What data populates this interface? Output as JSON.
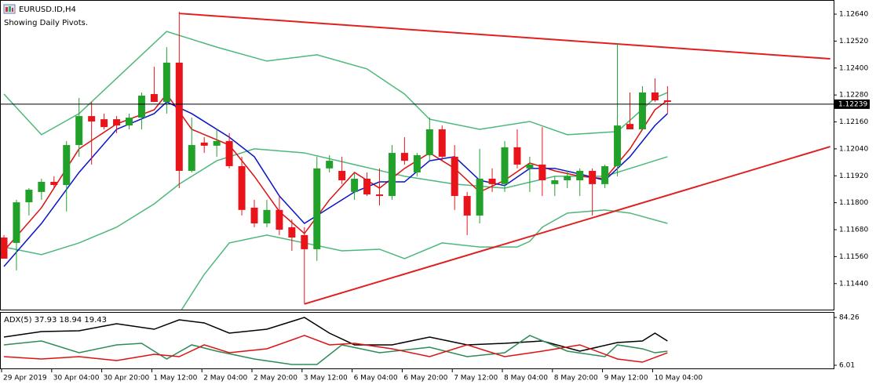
{
  "chart_data": {
    "type": "candlestick",
    "title": "EURUSD.ID,H4",
    "subtitle": "Showing Daily Pivots.",
    "up_color": "#22a12a",
    "down_color": "#e8141a",
    "open": [
      1.11645,
      1.11621,
      1.11802,
      1.11848,
      1.11893,
      1.11879,
      1.12057,
      1.12186,
      1.12172,
      1.12172,
      1.12144,
      1.12179,
      1.12284,
      1.12249,
      1.12424,
      1.11942,
      1.12068,
      1.12054,
      1.12075,
      1.11963,
      1.11778,
      1.11708,
      1.11768,
      1.11691,
      1.11656,
      1.11593,
      1.11953,
      1.11942,
      1.11848,
      1.11907,
      1.11837,
      1.1183,
      1.12022,
      1.11935,
      1.12012,
      1.12127,
      1.12005,
      1.1183,
      1.11743,
      1.11907,
      1.11883,
      1.12047,
      1.11953,
      1.1197,
      1.11883,
      1.119,
      1.119,
      1.11942,
      1.11883,
      1.11963,
      1.12151,
      1.12127,
      1.12291,
      1.12256
    ],
    "high": [
      1.11656,
      1.11813,
      1.11865,
      1.11907,
      1.11918,
      1.12075,
      1.12267,
      1.12249,
      1.12197,
      1.12186,
      1.12197,
      1.12291,
      1.12406,
      1.12493,
      1.1265,
      1.12179,
      1.12092,
      1.12127,
      1.1211,
      1.12005,
      1.11813,
      1.11813,
      1.1183,
      1.11726,
      1.11691,
      1.12005,
      1.12012,
      1.12005,
      1.11935,
      1.11935,
      1.11953,
      1.12057,
      1.12092,
      1.12022,
      1.12179,
      1.12144,
      1.12057,
      1.11848,
      1.1204,
      1.11953,
      1.12075,
      1.12127,
      1.12005,
      1.12137,
      1.11918,
      1.11942,
      1.11953,
      1.11953,
      1.1197,
      1.12511,
      1.12291,
      1.12319,
      1.12354,
      1.12319
    ],
    "low": [
      1.11551,
      1.11499,
      1.11743,
      1.11813,
      1.11865,
      1.11761,
      1.12005,
      1.1197,
      1.12127,
      1.1211,
      1.12127,
      1.12127,
      1.12249,
      1.12197,
      1.11865,
      1.11935,
      1.12022,
      1.12005,
      1.11953,
      1.11743,
      1.11691,
      1.11691,
      1.11656,
      1.11586,
      1.11349,
      1.11541,
      1.11935,
      1.11883,
      1.11813,
      1.1183,
      1.11788,
      1.11813,
      1.1197,
      1.11918,
      1.11987,
      1.11987,
      1.11768,
      1.11656,
      1.11708,
      1.11848,
      1.11848,
      1.11953,
      1.11848,
      1.1183,
      1.1183,
      1.11865,
      1.1183,
      1.11743,
      1.11865,
      1.11918,
      1.12127,
      1.12127,
      1.12249,
      1.12197
    ],
    "close": [
      1.11551,
      1.11802,
      1.11858,
      1.11893,
      1.11879,
      1.12057,
      1.12186,
      1.12162,
      1.12137,
      1.12144,
      1.12179,
      1.12277,
      1.12249,
      1.12424,
      1.11942,
      1.12057,
      1.12054,
      1.12075,
      1.11963,
      1.11768,
      1.11708,
      1.11768,
      1.1168,
      1.11645,
      1.11593,
      1.11953,
      1.11987,
      1.119,
      1.11907,
      1.11837,
      1.1183,
      1.12022,
      1.11987,
      1.12012,
      1.12127,
      1.12005,
      1.1183,
      1.11743,
      1.11907,
      1.11883,
      1.12047,
      1.1197,
      1.1197,
      1.119,
      1.119,
      1.11918,
      1.11942,
      1.11883,
      1.11963,
      1.12144,
      1.12127,
      1.12291,
      1.12256,
      1.12249
    ],
    "ylim": [
      1.11324,
      1.12703
    ],
    "yticks": [
      {
        "value": 1.1264,
        "label": "1.12640"
      },
      {
        "value": 1.1252,
        "label": "1.12520"
      },
      {
        "value": 1.124,
        "label": "1.12400"
      },
      {
        "value": 1.1228,
        "label": "1.12280"
      },
      {
        "value": 1.1216,
        "label": "1.12160"
      },
      {
        "value": 1.1204,
        "label": "1.12040"
      },
      {
        "value": 1.1192,
        "label": "1.11920"
      },
      {
        "value": 1.118,
        "label": "1.11800"
      },
      {
        "value": 1.1168,
        "label": "1.11680"
      },
      {
        "value": 1.1156,
        "label": "1.11560"
      },
      {
        "value": 1.1144,
        "label": "1.11440"
      }
    ],
    "current_price": {
      "value": 1.12239,
      "label": "1.12239"
    },
    "xticks": [
      {
        "value": 0,
        "label": "29 Apr 2019"
      },
      {
        "value": 4,
        "label": "30 Apr 04:00"
      },
      {
        "value": 8,
        "label": "30 Apr 20:00"
      },
      {
        "value": 12,
        "label": "1 May 12:00"
      },
      {
        "value": 16,
        "label": "2 May 04:00"
      },
      {
        "value": 20,
        "label": "2 May 20:00"
      },
      {
        "value": 24,
        "label": "3 May 12:00"
      },
      {
        "value": 28,
        "label": "6 May 04:00"
      },
      {
        "value": 32,
        "label": "6 May 20:00"
      },
      {
        "value": 36,
        "label": "7 May 12:00"
      },
      {
        "value": 40,
        "label": "8 May 04:00"
      },
      {
        "value": 44,
        "label": "8 May 20:00"
      },
      {
        "value": 48,
        "label": "9 May 12:00"
      },
      {
        "value": 52,
        "label": "10 May 04:00"
      }
    ],
    "overlays": [
      {
        "color": "#4cb87a",
        "width": 1.5,
        "x": [
          0,
          3,
          6,
          9,
          13,
          17,
          21,
          25,
          29,
          32,
          34,
          38,
          42,
          45,
          49,
          52,
          53
        ],
        "values": [
          1.12284,
          1.12103,
          1.12197,
          1.12354,
          1.12563,
          1.12493,
          1.12431,
          1.12459,
          1.12396,
          1.12284,
          1.12172,
          1.12127,
          1.12162,
          1.12103,
          1.12117,
          1.12267,
          1.12291
        ]
      },
      {
        "color": "#4cb87a",
        "width": 1.5,
        "x": [
          0,
          3,
          6,
          9,
          12,
          14,
          17,
          20,
          24,
          28,
          32,
          36,
          40,
          44,
          48,
          51,
          53
        ],
        "values": [
          1.11603,
          1.11569,
          1.11621,
          1.11691,
          1.11795,
          1.11883,
          1.11987,
          1.1204,
          1.12022,
          1.1197,
          1.11918,
          1.11883,
          1.11865,
          1.11918,
          1.11918,
          1.1197,
          1.12005
        ]
      },
      {
        "color": "#4cb87a",
        "width": 1.5,
        "x": [
          14,
          16,
          18,
          21,
          24,
          27,
          30,
          32,
          35,
          38,
          41,
          42,
          43,
          45,
          48,
          50,
          53
        ],
        "values": [
          1.11307,
          1.11481,
          1.11621,
          1.11656,
          1.11621,
          1.11586,
          1.11593,
          1.11551,
          1.11621,
          1.11603,
          1.11603,
          1.11628,
          1.11691,
          1.11754,
          1.11768,
          1.11754,
          1.11708
        ]
      },
      {
        "color": "#dd1111",
        "width": 1.5,
        "x": [
          0,
          3,
          6,
          9,
          12,
          13,
          15,
          18,
          20,
          22,
          24,
          26,
          28,
          30,
          32,
          34,
          36,
          38,
          40,
          42,
          44,
          46,
          48,
          50,
          52,
          53
        ],
        "values": [
          1.11586,
          1.11778,
          1.1204,
          1.12151,
          1.12214,
          1.12284,
          1.12127,
          1.12057,
          1.11918,
          1.11761,
          1.11663,
          1.11813,
          1.11935,
          1.11865,
          1.11953,
          1.12022,
          1.11953,
          1.11848,
          1.119,
          1.11977,
          1.11942,
          1.11918,
          1.11907,
          1.1204,
          1.12214,
          1.12256
        ]
      },
      {
        "color": "#0a14c8",
        "width": 1.5,
        "x": [
          0,
          3,
          6,
          9,
          12,
          13,
          15,
          18,
          20,
          22,
          24,
          26,
          28,
          30,
          32,
          34,
          36,
          38,
          40,
          42,
          44,
          46,
          48,
          50,
          52,
          53
        ],
        "values": [
          1.11516,
          1.11708,
          1.11935,
          1.12127,
          1.12197,
          1.12249,
          1.12197,
          1.12092,
          1.12005,
          1.1183,
          1.11708,
          1.11778,
          1.11848,
          1.11893,
          1.11893,
          1.11987,
          1.12005,
          1.119,
          1.11876,
          1.11953,
          1.11953,
          1.11928,
          1.119,
          1.12005,
          1.12144,
          1.12197
        ]
      },
      {
        "color": "#e02020",
        "width": 2,
        "x": [
          14,
          66
        ],
        "values": [
          1.12643,
          1.12441
        ]
      },
      {
        "color": "#e02020",
        "width": 2,
        "x": [
          24,
          66
        ],
        "values": [
          1.11349,
          1.1205
        ]
      }
    ],
    "indicator": {
      "label": "ADX(5) 37.93 18.94 19.43",
      "ylim": [
        0.88,
        93.24
      ],
      "yticks": [
        84.26,
        6.01
      ],
      "lines": [
        {
          "color": "#000000",
          "x": [
            0,
            3,
            6,
            9,
            12,
            14,
            16,
            18,
            21,
            24,
            26,
            28,
            31,
            34,
            37,
            40,
            43,
            46,
            49,
            51,
            52,
            53
          ],
          "values": [
            52.2,
            61.2,
            62.5,
            74,
            65,
            80.4,
            75.3,
            58.6,
            65,
            84.3,
            58.6,
            39.4,
            39.4,
            52.2,
            39.4,
            41.9,
            45.8,
            29.1,
            43.2,
            45.8,
            58.6,
            45.8
          ]
        },
        {
          "color": "#2e8b57",
          "x": [
            0,
            3,
            6,
            9,
            11,
            13,
            15,
            17,
            20,
            23,
            25,
            27,
            30,
            34,
            37,
            40,
            42,
            45,
            48,
            49,
            51,
            52,
            53
          ],
          "values": [
            39.4,
            45.8,
            26.5,
            39.4,
            41.9,
            16.3,
            39.4,
            29.1,
            16.3,
            7.3,
            7.3,
            39.4,
            26.5,
            35.5,
            20.1,
            26.5,
            54.8,
            29.1,
            20.1,
            39.4,
            33,
            26.5,
            29.1
          ]
        },
        {
          "color": "#dd1111",
          "x": [
            0,
            3,
            6,
            9,
            12,
            14,
            16,
            18,
            21,
            24,
            26,
            28,
            31,
            34,
            37,
            40,
            43,
            46,
            49,
            51,
            53
          ],
          "values": [
            20.1,
            16.3,
            20.1,
            13.7,
            24,
            20.1,
            39.4,
            26.5,
            33,
            54.8,
            39.4,
            41.9,
            33,
            20.1,
            39.4,
            20.1,
            29.1,
            39.4,
            16.3,
            11.1,
            26.5
          ]
        }
      ]
    }
  }
}
